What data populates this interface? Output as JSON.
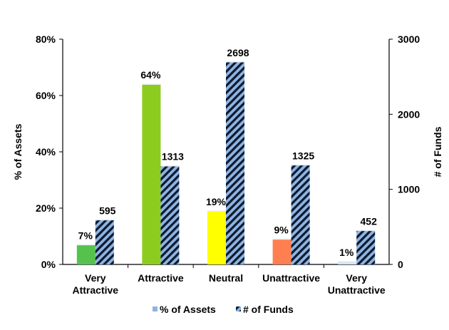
{
  "chart_data": {
    "type": "bar",
    "categories": [
      [
        "Very",
        "Attractive"
      ],
      [
        "Attractive"
      ],
      [
        "Neutral"
      ],
      [
        "Unattractive"
      ],
      [
        "Very",
        "Unattractive"
      ]
    ],
    "series": [
      {
        "name": "% of Assets",
        "axis": "left",
        "values": [
          7,
          64,
          19,
          9,
          1
        ],
        "labels": [
          "7%",
          "64%",
          "19%",
          "9%",
          "1%"
        ],
        "colors": [
          "#55c24e",
          "#8ccc1e",
          "#ffff00",
          "#ff7f50",
          "#d4e4f4"
        ]
      },
      {
        "name": "# of Funds",
        "axis": "right",
        "values": [
          595,
          1313,
          2698,
          1325,
          452
        ],
        "labels": [
          "595",
          "1313",
          "2698",
          "1325",
          "452"
        ],
        "pattern": "diagonal-stripes",
        "colors": [
          "#8fb4e3",
          "#0d1a2e"
        ]
      }
    ],
    "y_left": {
      "label": "% of Assets",
      "range": [
        0,
        80
      ],
      "ticks": [
        0,
        20,
        40,
        60,
        80
      ],
      "tick_labels": [
        "0%",
        "20%",
        "40%",
        "60%",
        "80%"
      ]
    },
    "y_right": {
      "label": "# of Funds",
      "range": [
        0,
        3000
      ],
      "ticks": [
        0,
        1000,
        2000,
        3000
      ],
      "tick_labels": [
        "0",
        "1000",
        "2000",
        "3000"
      ]
    },
    "grid": false,
    "legend": {
      "position": "bottom",
      "entries": [
        "% of Assets",
        "# of Funds"
      ]
    }
  }
}
